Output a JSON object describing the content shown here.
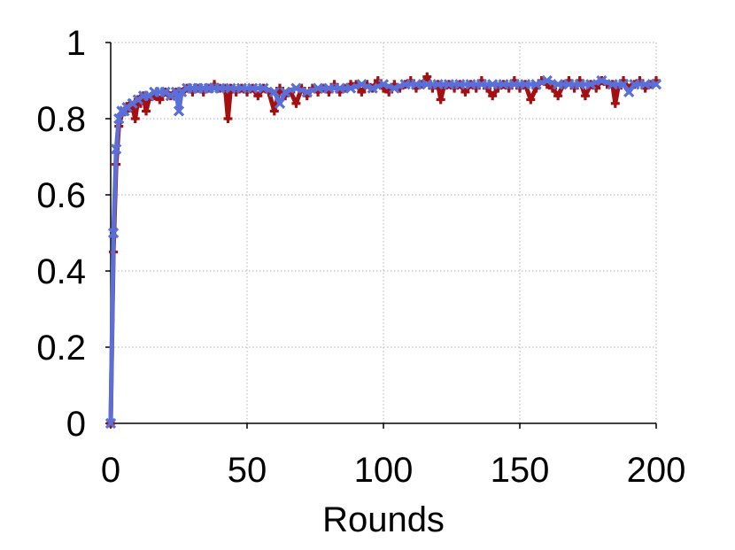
{
  "chart_data": {
    "type": "line",
    "title": "",
    "xlabel": "Rounds",
    "ylabel": "",
    "xlim": [
      0,
      200
    ],
    "ylim": [
      0,
      1
    ],
    "xticks": [
      "0",
      "50",
      "100",
      "150",
      "200"
    ],
    "yticks": [
      "0",
      "0.2",
      "0.4",
      "0.6",
      "0.8",
      "1"
    ],
    "grid": true,
    "legend": "none",
    "series": [
      {
        "color": "#a50f0f",
        "marker": "plus",
        "x": [
          0,
          1,
          2,
          3,
          4,
          5,
          6,
          7,
          8,
          9,
          10,
          11,
          12,
          13,
          14,
          16,
          18,
          20,
          22,
          24,
          26,
          28,
          30,
          32,
          34,
          36,
          38,
          40,
          42,
          43,
          44,
          46,
          48,
          50,
          52,
          54,
          56,
          58,
          60,
          62,
          64,
          66,
          68,
          70,
          72,
          74,
          76,
          78,
          80,
          82,
          84,
          86,
          88,
          90,
          92,
          94,
          96,
          98,
          100,
          102,
          104,
          106,
          108,
          110,
          112,
          114,
          116,
          118,
          120,
          121,
          122,
          124,
          126,
          128,
          130,
          132,
          134,
          136,
          138,
          140,
          142,
          144,
          146,
          148,
          150,
          152,
          154,
          156,
          158,
          160,
          162,
          164,
          166,
          168,
          170,
          172,
          174,
          176,
          178,
          180,
          182,
          184,
          185,
          186,
          188,
          190,
          192,
          194,
          196,
          198,
          200
        ],
        "y": [
          0.0,
          0.45,
          0.68,
          0.78,
          0.81,
          0.82,
          0.82,
          0.84,
          0.83,
          0.8,
          0.85,
          0.84,
          0.86,
          0.82,
          0.85,
          0.86,
          0.85,
          0.87,
          0.86,
          0.87,
          0.87,
          0.88,
          0.87,
          0.88,
          0.87,
          0.88,
          0.89,
          0.88,
          0.88,
          0.8,
          0.88,
          0.87,
          0.88,
          0.87,
          0.88,
          0.86,
          0.88,
          0.87,
          0.82,
          0.88,
          0.86,
          0.87,
          0.84,
          0.88,
          0.86,
          0.88,
          0.87,
          0.88,
          0.87,
          0.89,
          0.87,
          0.88,
          0.89,
          0.89,
          0.87,
          0.89,
          0.88,
          0.9,
          0.88,
          0.87,
          0.89,
          0.88,
          0.89,
          0.9,
          0.88,
          0.89,
          0.91,
          0.88,
          0.89,
          0.85,
          0.88,
          0.89,
          0.88,
          0.89,
          0.87,
          0.89,
          0.88,
          0.9,
          0.88,
          0.86,
          0.88,
          0.89,
          0.88,
          0.9,
          0.88,
          0.89,
          0.85,
          0.88,
          0.9,
          0.89,
          0.88,
          0.86,
          0.89,
          0.9,
          0.88,
          0.9,
          0.86,
          0.89,
          0.88,
          0.9,
          0.89,
          0.89,
          0.84,
          0.88,
          0.9,
          0.88,
          0.89,
          0.9,
          0.88,
          0.89,
          0.9
        ]
      },
      {
        "color": "#5a6fd8",
        "marker": "x",
        "x": [
          0,
          1,
          2,
          3,
          4,
          5,
          6,
          8,
          10,
          12,
          14,
          16,
          18,
          20,
          22,
          24,
          25,
          26,
          28,
          30,
          32,
          34,
          36,
          38,
          40,
          44,
          48,
          52,
          56,
          60,
          62,
          64,
          68,
          72,
          76,
          80,
          84,
          88,
          92,
          96,
          100,
          104,
          108,
          112,
          116,
          120,
          124,
          128,
          132,
          136,
          140,
          144,
          148,
          152,
          156,
          160,
          164,
          168,
          172,
          176,
          180,
          184,
          188,
          190,
          192,
          196,
          200
        ],
        "y": [
          0.0,
          0.5,
          0.72,
          0.8,
          0.82,
          0.82,
          0.83,
          0.84,
          0.85,
          0.86,
          0.86,
          0.87,
          0.87,
          0.87,
          0.86,
          0.87,
          0.82,
          0.87,
          0.88,
          0.88,
          0.88,
          0.88,
          0.88,
          0.88,
          0.88,
          0.88,
          0.88,
          0.88,
          0.88,
          0.87,
          0.84,
          0.87,
          0.88,
          0.87,
          0.88,
          0.88,
          0.88,
          0.88,
          0.89,
          0.88,
          0.89,
          0.88,
          0.89,
          0.89,
          0.89,
          0.89,
          0.89,
          0.89,
          0.89,
          0.89,
          0.89,
          0.89,
          0.89,
          0.89,
          0.89,
          0.9,
          0.89,
          0.89,
          0.89,
          0.89,
          0.9,
          0.89,
          0.89,
          0.87,
          0.89,
          0.89,
          0.89
        ]
      }
    ]
  }
}
